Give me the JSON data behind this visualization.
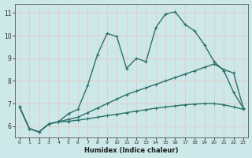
{
  "xlabel": "Humidex (Indice chaleur)",
  "bg_color": "#cce8e8",
  "grid_color": "#e8c8c8",
  "line_color": "#2d7068",
  "xlim": [
    -0.5,
    23.5
  ],
  "ylim": [
    5.5,
    11.4
  ],
  "yticks": [
    6,
    7,
    8,
    9,
    10,
    11
  ],
  "xticks": [
    0,
    1,
    2,
    3,
    4,
    5,
    6,
    7,
    8,
    9,
    10,
    11,
    12,
    13,
    14,
    15,
    16,
    17,
    18,
    19,
    20,
    21,
    22,
    23
  ],
  "series1_x": [
    0,
    1,
    2,
    3,
    4,
    5,
    6,
    7,
    8,
    9,
    10,
    11,
    12,
    13,
    14,
    15,
    16,
    17,
    18,
    19,
    20,
    21,
    22,
    23
  ],
  "series1_y": [
    6.85,
    5.9,
    5.75,
    6.1,
    6.2,
    6.22,
    6.27,
    6.33,
    6.4,
    6.47,
    6.53,
    6.6,
    6.67,
    6.73,
    6.8,
    6.85,
    6.9,
    6.95,
    6.98,
    7.0,
    7.0,
    6.95,
    6.85,
    6.75
  ],
  "series2_x": [
    0,
    1,
    2,
    3,
    4,
    5,
    6,
    7,
    8,
    9,
    10,
    11,
    12,
    13,
    14,
    15,
    16,
    17,
    18,
    19,
    20,
    21,
    22,
    23
  ],
  "series2_y": [
    6.85,
    5.9,
    5.75,
    6.1,
    6.2,
    6.3,
    6.4,
    6.6,
    6.8,
    7.0,
    7.2,
    7.4,
    7.55,
    7.7,
    7.85,
    8.0,
    8.15,
    8.3,
    8.45,
    8.6,
    8.75,
    8.5,
    8.35,
    6.8
  ],
  "series3_x": [
    0,
    1,
    2,
    3,
    4,
    5,
    6,
    7,
    8,
    9,
    10,
    11,
    12,
    13,
    14,
    15,
    16,
    17,
    18,
    19,
    20,
    21,
    22,
    23
  ],
  "series3_y": [
    6.85,
    5.9,
    5.75,
    6.1,
    6.2,
    6.55,
    6.75,
    7.8,
    9.15,
    10.1,
    9.95,
    8.55,
    9.0,
    8.85,
    10.35,
    10.95,
    11.05,
    10.5,
    10.2,
    9.6,
    8.85,
    8.45,
    7.5,
    6.8
  ],
  "markersize": 3,
  "linewidth": 1.0
}
